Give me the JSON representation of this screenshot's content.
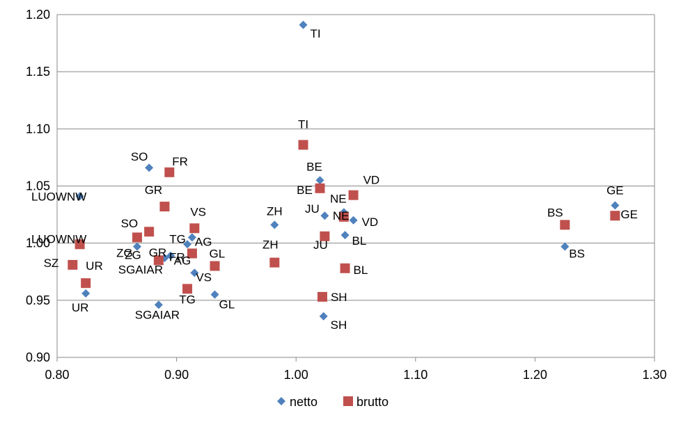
{
  "chart_data": {
    "type": "scatter",
    "title": "",
    "xlabel": "",
    "ylabel": "",
    "xlim": [
      0.8,
      1.3
    ],
    "ylim": [
      0.9,
      1.2
    ],
    "x_ticks": [
      "0.80",
      "0.90",
      "1.00",
      "1.10",
      "1.20",
      "1.30"
    ],
    "y_ticks": [
      "0.90",
      "0.95",
      "1.00",
      "1.05",
      "1.10",
      "1.15",
      "1.20"
    ],
    "grid": "horizontal",
    "legend_position": "bottom",
    "series": [
      {
        "name": "netto",
        "color": "#4F81BD",
        "marker": "diamond",
        "points": [
          {
            "label": "TI",
            "x": 1.006,
            "y": 1.191
          },
          {
            "label": "BE",
            "x": 1.02,
            "y": 1.055
          },
          {
            "label": "NE",
            "x": 1.04,
            "y": 1.027
          },
          {
            "label": "JU",
            "x": 1.024,
            "y": 1.024
          },
          {
            "label": "VD",
            "x": 1.048,
            "y": 1.02
          },
          {
            "label": "BL",
            "x": 1.041,
            "y": 1.007
          },
          {
            "label": "SH",
            "x": 1.023,
            "y": 0.936
          },
          {
            "label": "ZH",
            "x": 0.982,
            "y": 1.016
          },
          {
            "label": "GE",
            "x": 1.267,
            "y": 1.033
          },
          {
            "label": "BS",
            "x": 1.225,
            "y": 0.997
          },
          {
            "label": "SO",
            "x": 0.877,
            "y": 1.066
          },
          {
            "label": "LUOWNW",
            "x": 0.819,
            "y": 1.041
          },
          {
            "label": "AG",
            "x": 0.913,
            "y": 1.005
          },
          {
            "label": "TG",
            "x": 0.909,
            "y": 0.999
          },
          {
            "label": "ZG",
            "x": 0.867,
            "y": 0.997
          },
          {
            "label": "FR",
            "x": 0.895,
            "y": 0.989
          },
          {
            "label": "GR",
            "x": 0.89,
            "y": 0.987
          },
          {
            "label": "VS",
            "x": 0.915,
            "y": 0.974
          },
          {
            "label": "GL",
            "x": 0.932,
            "y": 0.955
          },
          {
            "label": "SGAIAR",
            "x": 0.885,
            "y": 0.946
          },
          {
            "label": "UR",
            "x": 0.824,
            "y": 0.956
          }
        ]
      },
      {
        "name": "brutto",
        "color": "#C0504D",
        "marker": "square",
        "points": [
          {
            "label": "TI",
            "x": 1.006,
            "y": 1.086
          },
          {
            "label": "BE",
            "x": 1.02,
            "y": 1.048
          },
          {
            "label": "VD",
            "x": 1.048,
            "y": 1.042
          },
          {
            "label": "NE",
            "x": 1.04,
            "y": 1.023
          },
          {
            "label": "JU",
            "x": 1.024,
            "y": 1.006
          },
          {
            "label": "BL",
            "x": 1.041,
            "y": 0.978
          },
          {
            "label": "SH",
            "x": 1.022,
            "y": 0.953
          },
          {
            "label": "ZH",
            "x": 0.982,
            "y": 0.983
          },
          {
            "label": "BS",
            "x": 1.225,
            "y": 1.016
          },
          {
            "label": "GE",
            "x": 1.267,
            "y": 1.024
          },
          {
            "label": "FR",
            "x": 0.894,
            "y": 1.062
          },
          {
            "label": "GR",
            "x": 0.89,
            "y": 1.032
          },
          {
            "label": "VS",
            "x": 0.915,
            "y": 1.013
          },
          {
            "label": "SO",
            "x": 0.877,
            "y": 1.01
          },
          {
            "label": "ZG",
            "x": 0.867,
            "y": 1.005
          },
          {
            "label": "AG",
            "x": 0.913,
            "y": 0.991
          },
          {
            "label": "SGAIAR",
            "x": 0.885,
            "y": 0.985
          },
          {
            "label": "GL",
            "x": 0.932,
            "y": 0.98
          },
          {
            "label": "TG",
            "x": 0.909,
            "y": 0.96
          },
          {
            "label": "LUOWNW",
            "x": 0.819,
            "y": 0.999
          },
          {
            "label": "SZ",
            "x": 0.813,
            "y": 0.981
          },
          {
            "label": "UR",
            "x": 0.824,
            "y": 0.965
          }
        ]
      }
    ]
  }
}
